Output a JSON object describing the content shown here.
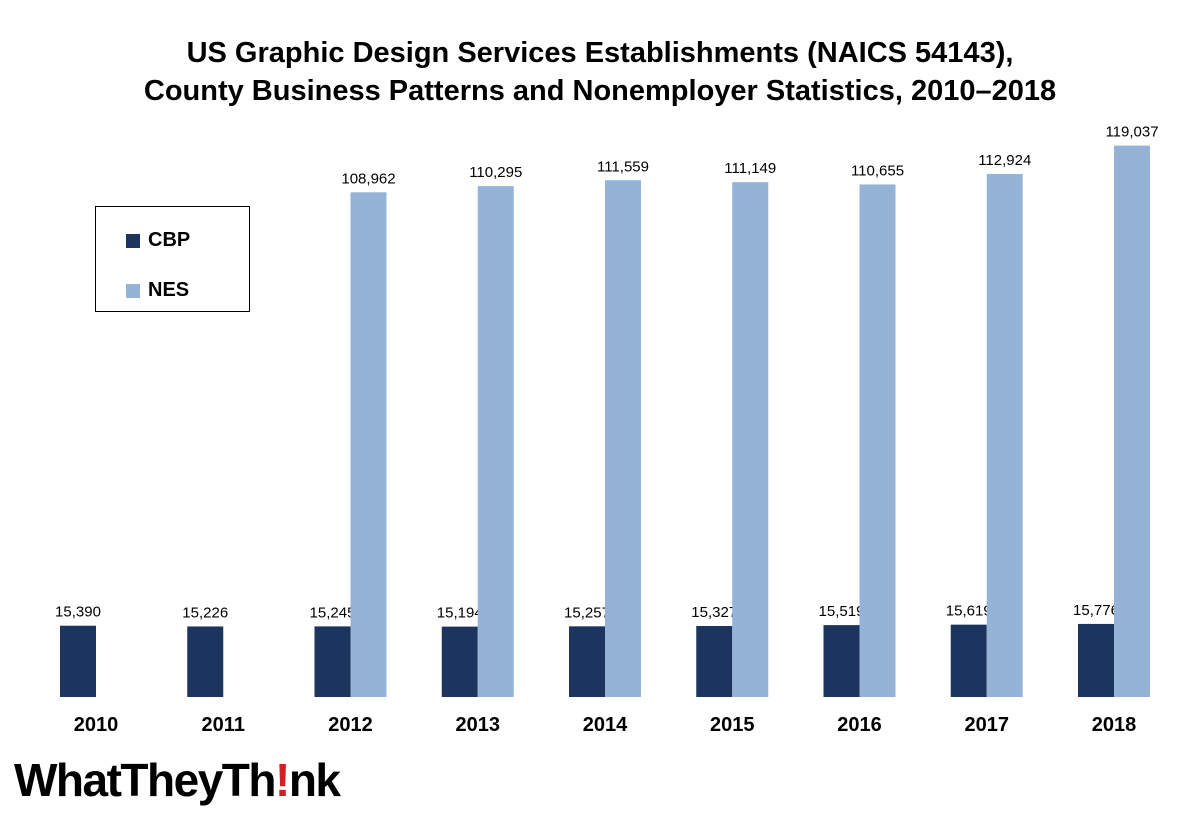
{
  "chart_data": {
    "type": "bar",
    "title": "US Graphic Design Services Establishments (NAICS 54143),",
    "subtitle": "County Business Patterns and Nonemployer Statistics, 2010–2018",
    "xlabel": "",
    "ylabel": "",
    "ylim": [
      0,
      125000
    ],
    "grid": false,
    "legend_position": "top-left",
    "categories": [
      "2010",
      "2011",
      "2012",
      "2013",
      "2014",
      "2015",
      "2016",
      "2017",
      "2018"
    ],
    "series": [
      {
        "name": "CBP",
        "color": "#1b355e",
        "values": [
          15390,
          15226,
          15245,
          15194,
          15257,
          15327,
          15519,
          15619,
          15776
        ],
        "labels": [
          "15,390",
          "15,226",
          "15,245",
          "15,194",
          "15,257",
          "15,327",
          "15,519",
          "15,619",
          "15,776"
        ]
      },
      {
        "name": "NES",
        "color": "#95b3d7",
        "values": [
          null,
          null,
          108962,
          110295,
          111559,
          111149,
          110655,
          112924,
          119037
        ],
        "labels": [
          "",
          "",
          "108,962",
          "110,295",
          "111,559",
          "111,149",
          "110,655",
          "112,924",
          "119,037"
        ]
      }
    ]
  },
  "logo": {
    "part1": "WhatTheyTh",
    "part2": "!",
    "part3": "nk"
  }
}
